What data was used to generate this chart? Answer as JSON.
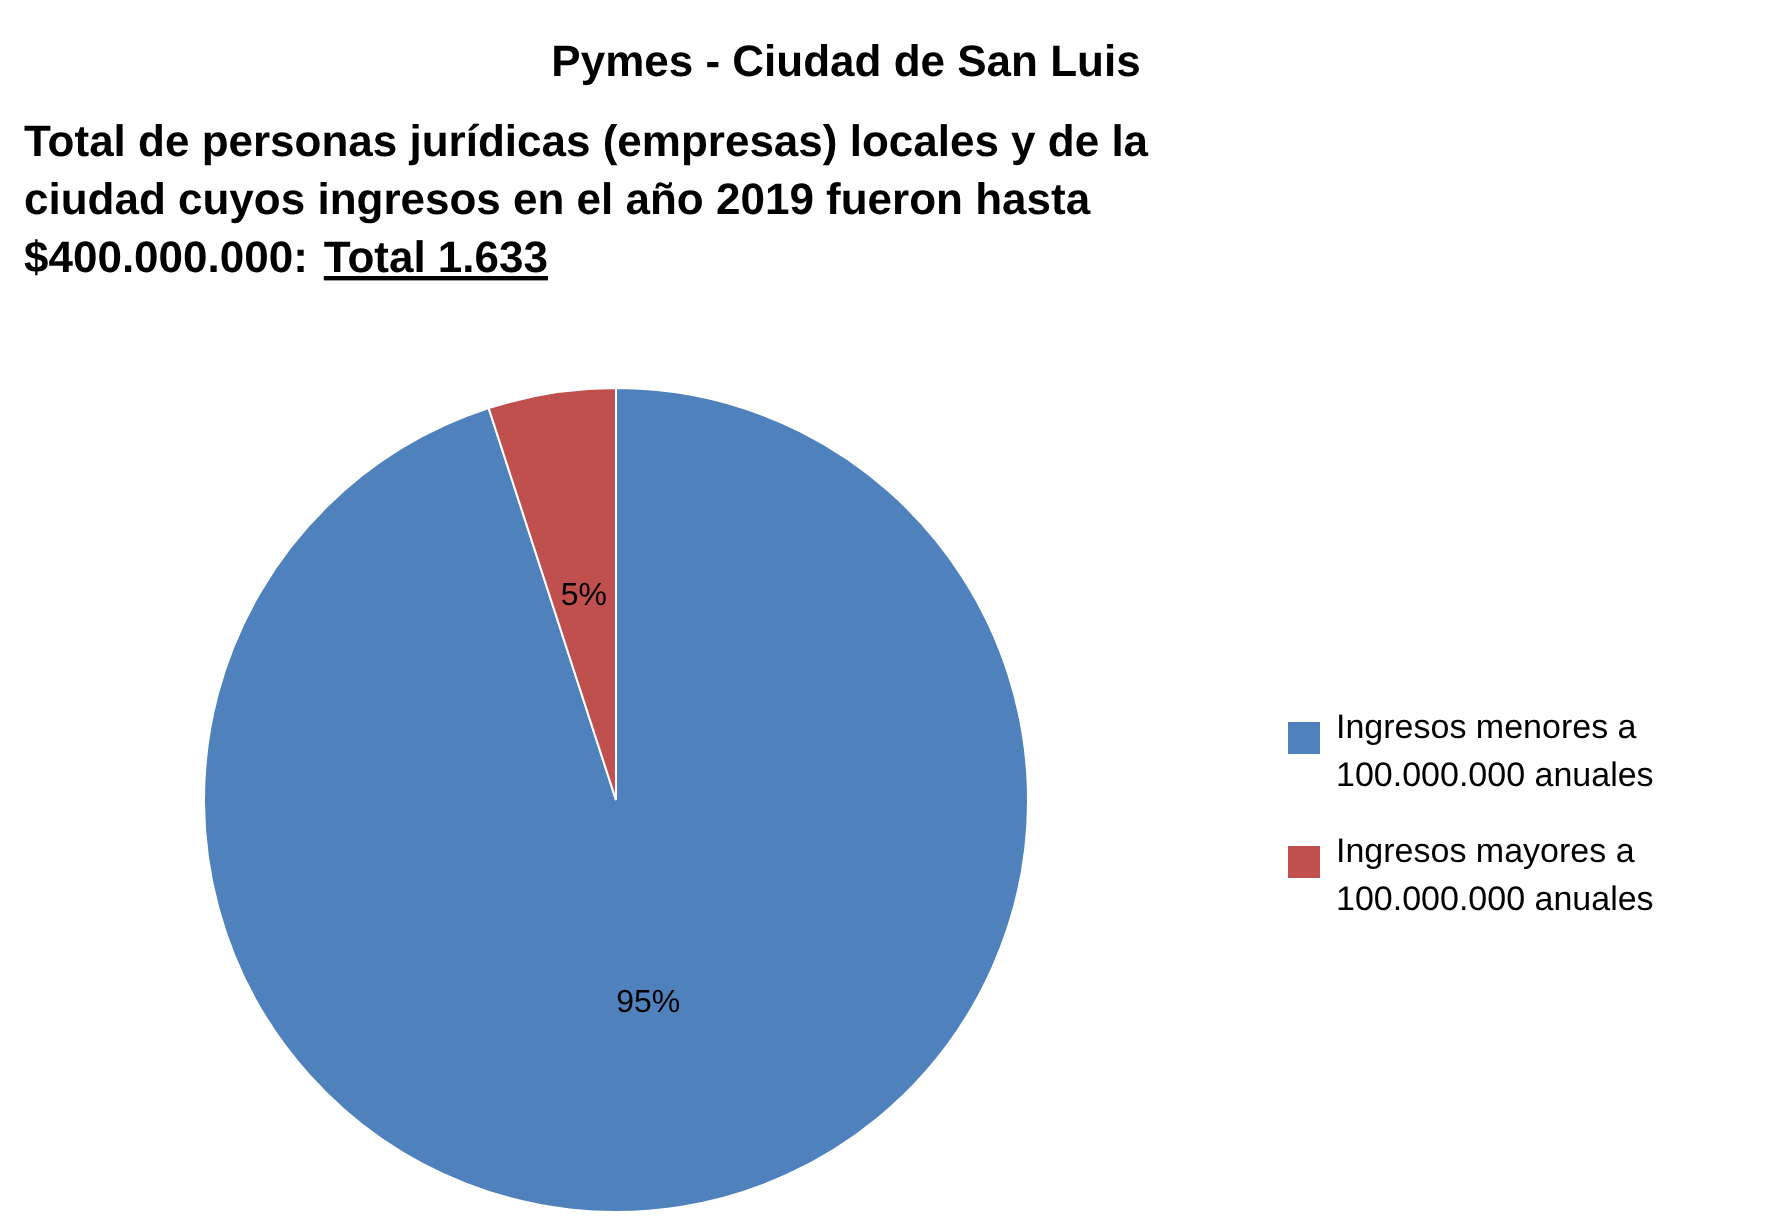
{
  "chart_data": {
    "type": "pie",
    "title": "Pymes - Ciudad de San Luis",
    "subtitle": "Total de personas jurídicas (empresas) locales y de la ciudad cuyos ingresos en el año 2019 fueron hasta $400.000.000:",
    "annotations": [
      "Total 1.633"
    ],
    "categories": [
      "Ingresos menores a 100.000.000 anuales",
      "Ingresos mayores a 100.000.000 anuales"
    ],
    "values": [
      95,
      5
    ],
    "colors": [
      "#4f81bd",
      "#c0504d"
    ],
    "value_labels": [
      "95%",
      "5%"
    ],
    "legend": "right"
  }
}
